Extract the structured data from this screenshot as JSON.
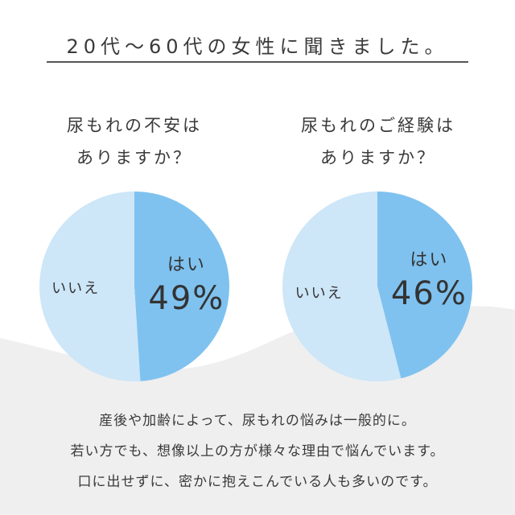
{
  "title": "20代〜60代の女性に聞きました。",
  "colors": {
    "yes": "#7fc2ef",
    "no": "#cde6f8",
    "wave": "#efefef",
    "text": "#333333"
  },
  "chart_data": [
    {
      "type": "pie",
      "question_lines": [
        "尿もれの不安は",
        "ありますか？"
      ],
      "slices": [
        {
          "label": "はい",
          "value": 49,
          "display": "49%"
        },
        {
          "label": "いいえ",
          "value": 51,
          "display": ""
        }
      ]
    },
    {
      "type": "pie",
      "question_lines": [
        "尿もれのご経験は",
        "ありますか？"
      ],
      "slices": [
        {
          "label": "はい",
          "value": 46,
          "display": "46%"
        },
        {
          "label": "いいえ",
          "value": 54,
          "display": ""
        }
      ]
    }
  ],
  "footer_lines": [
    "産後や加齢によって、尿もれの悩みは一般的に。",
    "若い方でも、想像以上の方が様々な理由で悩んでいます。",
    "口に出せずに、密かに抱えこんでいる人も多いのです。"
  ]
}
